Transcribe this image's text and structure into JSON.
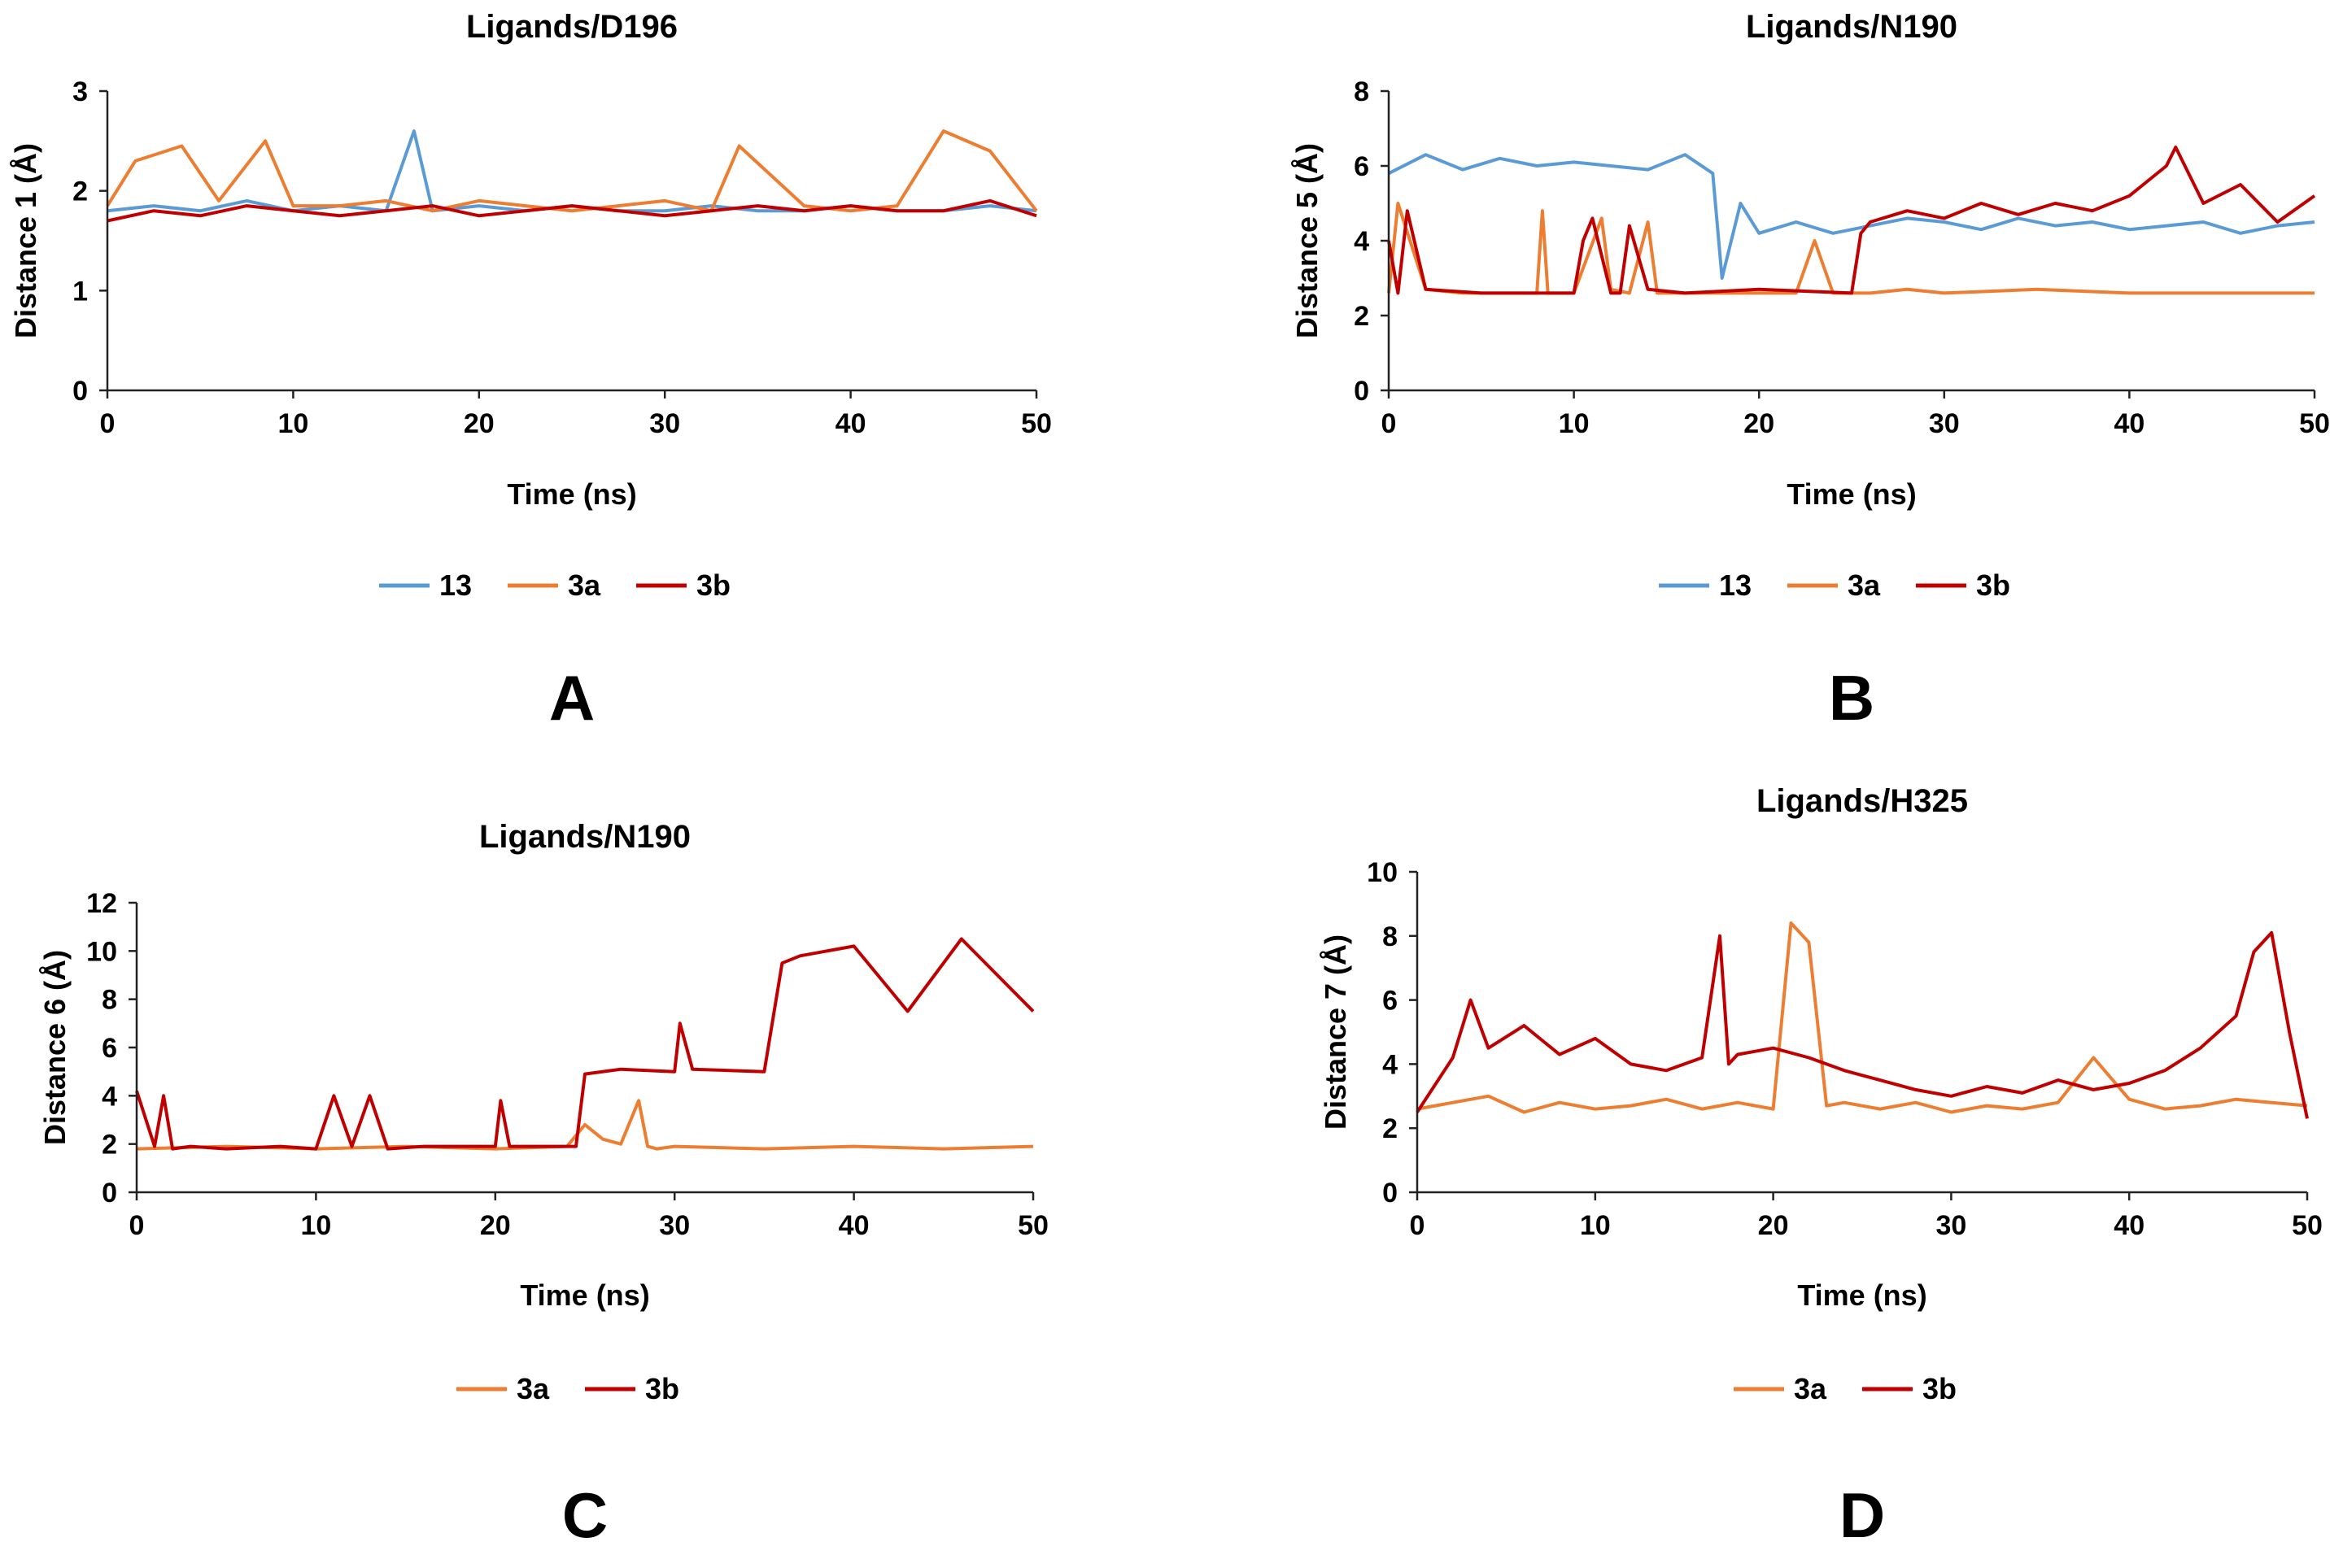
{
  "colors": {
    "13": "#5b9bd5",
    "3a": "#ed7d31",
    "3b": "#c00000"
  },
  "chart_data": [
    {
      "panel": "A",
      "type": "line",
      "title": "Ligands/D196",
      "xlabel": "Time (ns)",
      "ylabel": "Distance 1 (Å)",
      "xlim": [
        0,
        50
      ],
      "ylim": [
        0,
        3
      ],
      "xticks": [
        0,
        10,
        20,
        30,
        40,
        50
      ],
      "yticks": [
        0,
        1,
        2,
        3
      ],
      "grid": false,
      "legend": "bottom",
      "series": [
        {
          "name": "13",
          "color": "#5b9bd5",
          "x": [
            0,
            2.5,
            5,
            7.5,
            10,
            12.5,
            15,
            16.5,
            17.5,
            20,
            22.5,
            25,
            27.5,
            30,
            32.5,
            35,
            37.5,
            40,
            42.5,
            45,
            47.5,
            50
          ],
          "y": [
            1.8,
            1.85,
            1.8,
            1.9,
            1.8,
            1.85,
            1.8,
            2.6,
            1.8,
            1.85,
            1.8,
            1.85,
            1.8,
            1.8,
            1.85,
            1.8,
            1.8,
            1.85,
            1.8,
            1.8,
            1.85,
            1.8
          ]
        },
        {
          "name": "3a",
          "color": "#ed7d31",
          "x": [
            0,
            1.5,
            4,
            6,
            8.5,
            10,
            12.5,
            15,
            17.5,
            20,
            22.5,
            25,
            27.5,
            30,
            32.5,
            34,
            37.5,
            40,
            42.5,
            45,
            47.5,
            50
          ],
          "y": [
            1.85,
            2.3,
            2.45,
            1.9,
            2.5,
            1.85,
            1.85,
            1.9,
            1.8,
            1.9,
            1.85,
            1.8,
            1.85,
            1.9,
            1.8,
            2.45,
            1.85,
            1.8,
            1.85,
            2.6,
            2.4,
            1.8
          ]
        },
        {
          "name": "3b",
          "color": "#c00000",
          "x": [
            0,
            2.5,
            5,
            7.5,
            10,
            12.5,
            15,
            17.5,
            20,
            22.5,
            25,
            27.5,
            30,
            32.5,
            35,
            37.5,
            40,
            42.5,
            45,
            47.5,
            50
          ],
          "y": [
            1.7,
            1.8,
            1.75,
            1.85,
            1.8,
            1.75,
            1.8,
            1.85,
            1.75,
            1.8,
            1.85,
            1.8,
            1.75,
            1.8,
            1.85,
            1.8,
            1.85,
            1.8,
            1.8,
            1.9,
            1.75
          ]
        }
      ]
    },
    {
      "panel": "B",
      "type": "line",
      "title": "Ligands/N190",
      "xlabel": "Time (ns)",
      "ylabel": "Distance 5 (Å)",
      "xlim": [
        0,
        50
      ],
      "ylim": [
        0,
        8
      ],
      "xticks": [
        0,
        10,
        20,
        30,
        40,
        50
      ],
      "yticks": [
        0,
        2,
        4,
        6,
        8
      ],
      "grid": false,
      "legend": "bottom",
      "series": [
        {
          "name": "13",
          "color": "#5b9bd5",
          "x": [
            0,
            2,
            4,
            6,
            8,
            10,
            12,
            14,
            16,
            17.5,
            18,
            19,
            20,
            22,
            24,
            26,
            28,
            30,
            32,
            34,
            36,
            38,
            40,
            42,
            44,
            46,
            48,
            50
          ],
          "y": [
            5.8,
            6.3,
            5.9,
            6.2,
            6.0,
            6.1,
            6.0,
            5.9,
            6.3,
            5.8,
            3.0,
            5.0,
            4.2,
            4.5,
            4.2,
            4.4,
            4.6,
            4.5,
            4.3,
            4.6,
            4.4,
            4.5,
            4.3,
            4.4,
            4.5,
            4.2,
            4.4,
            4.5
          ]
        },
        {
          "name": "3a",
          "color": "#ed7d31",
          "x": [
            0,
            0.5,
            2,
            4,
            6,
            8,
            8.3,
            8.6,
            10,
            11.5,
            12,
            13,
            14,
            14.5,
            15,
            18,
            20,
            22,
            23,
            24,
            26,
            28,
            30,
            35,
            40,
            45,
            50
          ],
          "y": [
            2.6,
            5.0,
            2.7,
            2.6,
            2.6,
            2.6,
            4.8,
            2.6,
            2.6,
            4.6,
            2.7,
            2.6,
            4.5,
            2.6,
            2.6,
            2.6,
            2.6,
            2.6,
            4.0,
            2.6,
            2.6,
            2.7,
            2.6,
            2.7,
            2.6,
            2.6,
            2.6
          ]
        },
        {
          "name": "3b",
          "color": "#c00000",
          "x": [
            0,
            0.5,
            1,
            2,
            5,
            10,
            10.5,
            11,
            12,
            12.5,
            13,
            14,
            16,
            20,
            25,
            25.5,
            26,
            28,
            30,
            32,
            34,
            36,
            38,
            40,
            42,
            42.5,
            44,
            46,
            48,
            50
          ],
          "y": [
            4.0,
            2.6,
            4.8,
            2.7,
            2.6,
            2.6,
            4.0,
            4.6,
            2.6,
            2.6,
            4.4,
            2.7,
            2.6,
            2.7,
            2.6,
            4.2,
            4.5,
            4.8,
            4.6,
            5.0,
            4.7,
            5.0,
            4.8,
            5.2,
            6.0,
            6.5,
            5.0,
            5.5,
            4.5,
            5.2
          ]
        }
      ]
    },
    {
      "panel": "C",
      "type": "line",
      "title": "Ligands/N190",
      "xlabel": "Time (ns)",
      "ylabel": "Distance 6 (Å)",
      "xlim": [
        0,
        50
      ],
      "ylim": [
        0,
        12
      ],
      "xticks": [
        0,
        10,
        20,
        30,
        40,
        50
      ],
      "yticks": [
        0,
        2,
        4,
        6,
        8,
        10,
        12
      ],
      "grid": false,
      "legend": "bottom",
      "series": [
        {
          "name": "3a",
          "color": "#ed7d31",
          "x": [
            0,
            5,
            10,
            15,
            20,
            24,
            25,
            26,
            27,
            28,
            28.5,
            29,
            30,
            35,
            40,
            45,
            50
          ],
          "y": [
            1.8,
            1.9,
            1.8,
            1.9,
            1.8,
            1.9,
            2.8,
            2.2,
            2.0,
            3.8,
            1.9,
            1.8,
            1.9,
            1.8,
            1.9,
            1.8,
            1.9
          ]
        },
        {
          "name": "3b",
          "color": "#c00000",
          "x": [
            0,
            1,
            1.5,
            2,
            3,
            5,
            8,
            10,
            11,
            12,
            13,
            14,
            16,
            20,
            20.3,
            20.8,
            24.5,
            25,
            27,
            30,
            30.3,
            31,
            35,
            36,
            37,
            40,
            43,
            46,
            50
          ],
          "y": [
            4.2,
            1.9,
            4.0,
            1.8,
            1.9,
            1.8,
            1.9,
            1.8,
            4.0,
            1.9,
            4.0,
            1.8,
            1.9,
            1.9,
            3.8,
            1.9,
            1.9,
            4.9,
            5.1,
            5.0,
            7.0,
            5.1,
            5.0,
            9.5,
            9.8,
            10.2,
            7.5,
            10.5,
            7.5
          ]
        }
      ]
    },
    {
      "panel": "D",
      "type": "line",
      "title": "Ligands/H325",
      "xlabel": "Time (ns)",
      "ylabel": "Distance 7 (Å)",
      "xlim": [
        0,
        50
      ],
      "ylim": [
        0,
        10
      ],
      "xticks": [
        0,
        10,
        20,
        30,
        40,
        50
      ],
      "yticks": [
        0,
        2,
        4,
        6,
        8,
        10
      ],
      "grid": false,
      "legend": "bottom",
      "series": [
        {
          "name": "3a",
          "color": "#ed7d31",
          "x": [
            0,
            2,
            4,
            6,
            8,
            10,
            12,
            14,
            16,
            18,
            20,
            21,
            22,
            23,
            24,
            26,
            28,
            30,
            32,
            34,
            36,
            38,
            40,
            42,
            44,
            46,
            48,
            50
          ],
          "y": [
            2.6,
            2.8,
            3.0,
            2.5,
            2.8,
            2.6,
            2.7,
            2.9,
            2.6,
            2.8,
            2.6,
            8.4,
            7.8,
            2.7,
            2.8,
            2.6,
            2.8,
            2.5,
            2.7,
            2.6,
            2.8,
            4.2,
            2.9,
            2.6,
            2.7,
            2.9,
            2.8,
            2.7
          ]
        },
        {
          "name": "3b",
          "color": "#c00000",
          "x": [
            0,
            2,
            3,
            4,
            6,
            8,
            10,
            12,
            14,
            16,
            17,
            17.5,
            18,
            20,
            22,
            24,
            26,
            28,
            30,
            32,
            34,
            36,
            38,
            40,
            42,
            44,
            46,
            47,
            48,
            49,
            50
          ],
          "y": [
            2.5,
            4.2,
            6.0,
            4.5,
            5.2,
            4.3,
            4.8,
            4.0,
            3.8,
            4.2,
            8.0,
            4.0,
            4.3,
            4.5,
            4.2,
            3.8,
            3.5,
            3.2,
            3.0,
            3.3,
            3.1,
            3.5,
            3.2,
            3.4,
            3.8,
            4.5,
            5.5,
            7.5,
            8.1,
            5.0,
            2.3
          ]
        }
      ]
    }
  ]
}
